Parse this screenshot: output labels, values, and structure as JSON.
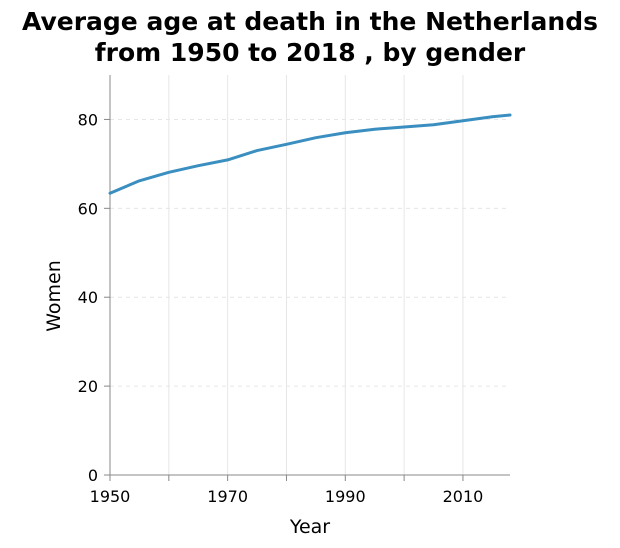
{
  "chart_data": {
    "type": "line",
    "title": [
      "Average age at death in the Netherlands",
      "from 1950 to 2018 , by gender"
    ],
    "xlabel": "Year",
    "ylabel": "Women",
    "xlim": [
      1950,
      2018
    ],
    "ylim": [
      0,
      90
    ],
    "x_ticks": [
      1950,
      1960,
      1970,
      1980,
      1990,
      2000,
      2010
    ],
    "x_tick_labels": [
      "1950",
      "",
      "1970",
      "",
      "1990",
      "",
      "2010"
    ],
    "y_ticks": [
      0,
      20,
      40,
      60,
      80
    ],
    "y_tick_labels": [
      "0",
      "20",
      "40",
      "60",
      "80"
    ],
    "grid": true,
    "colors": {
      "line": "#3a8fc0",
      "grid": "#e6e6e6",
      "axis": "#888888"
    },
    "series": [
      {
        "x": [
          1950,
          1955,
          1960,
          1965,
          1970,
          1975,
          1980,
          1985,
          1990,
          1995,
          2000,
          2005,
          2010,
          2015,
          2018
        ],
        "values": [
          63.4,
          66.2,
          68.1,
          69.6,
          70.9,
          73.0,
          74.4,
          75.9,
          77.0,
          77.8,
          78.3,
          78.8,
          79.7,
          80.6,
          81.0
        ]
      }
    ]
  }
}
